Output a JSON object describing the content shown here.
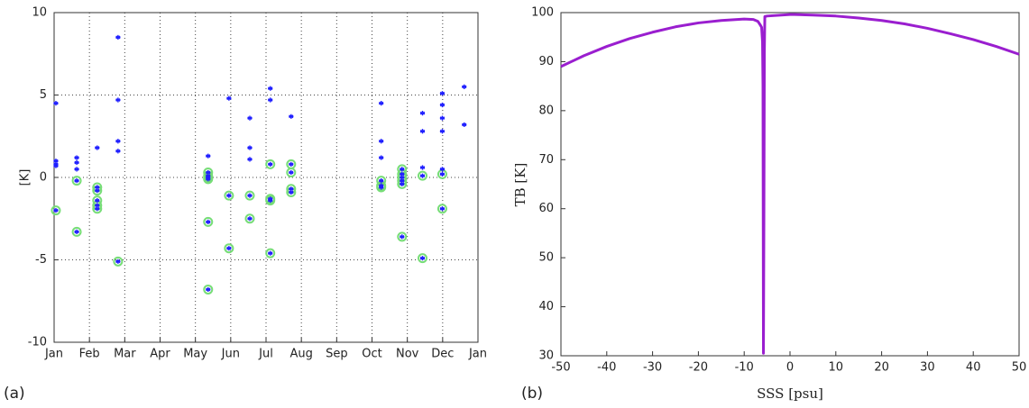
{
  "chart_data": [
    {
      "type": "scatter",
      "label": "(a)",
      "ylabel": "[K]",
      "xlim": [
        0,
        12
      ],
      "ylim": [
        -10,
        10
      ],
      "xticks": [
        {
          "value": 0,
          "label": "Jan"
        },
        {
          "value": 1,
          "label": "Feb"
        },
        {
          "value": 2,
          "label": "Mar"
        },
        {
          "value": 3,
          "label": "Apr"
        },
        {
          "value": 4,
          "label": "May"
        },
        {
          "value": 5,
          "label": "Jun"
        },
        {
          "value": 6,
          "label": "Jul"
        },
        {
          "value": 7,
          "label": "Aug"
        },
        {
          "value": 8,
          "label": "Sep"
        },
        {
          "value": 9,
          "label": "Oct"
        },
        {
          "value": 10,
          "label": "Nov"
        },
        {
          "value": 11,
          "label": "Dec"
        },
        {
          "value": 12,
          "label": "Jan"
        }
      ],
      "yticks": [
        -10,
        -5,
        0,
        5,
        10
      ],
      "grid": true,
      "series": [
        {
          "marker": "star",
          "color": "#2020ff",
          "x": [
            0.05,
            0.05,
            0.05,
            0.05,
            0.05,
            0.64,
            0.64,
            0.64,
            0.64,
            0.64,
            1.22,
            1.22,
            1.22,
            1.22,
            1.22,
            1.22,
            1.81,
            1.81,
            1.81,
            1.81,
            1.81,
            4.36,
            4.36,
            4.36,
            4.36,
            4.36,
            4.36,
            4.36,
            4.95,
            4.95,
            4.95,
            5.54,
            5.54,
            5.54,
            5.54,
            5.54,
            6.12,
            6.12,
            6.12,
            6.12,
            6.12,
            6.12,
            6.71,
            6.71,
            6.71,
            6.71,
            6.71,
            9.26,
            9.26,
            9.26,
            9.26,
            9.26,
            9.26,
            9.85,
            9.85,
            9.85,
            9.85,
            9.85,
            9.85,
            10.43,
            10.43,
            10.43,
            10.43,
            10.43,
            10.99,
            10.99,
            10.99,
            10.99,
            10.99,
            10.99,
            10.99,
            11.61,
            11.61
          ],
          "values": [
            4.5,
            1.0,
            0.8,
            0.7,
            -2.0,
            1.2,
            0.9,
            0.5,
            -0.2,
            -3.3,
            1.8,
            -0.6,
            -0.8,
            -1.4,
            -1.7,
            -1.9,
            8.5,
            4.7,
            2.2,
            1.6,
            -5.1,
            1.3,
            0.3,
            0.1,
            0.0,
            -0.1,
            -2.7,
            -6.8,
            4.8,
            -1.1,
            -4.3,
            3.6,
            1.8,
            1.1,
            -1.1,
            -2.5,
            5.4,
            4.7,
            0.8,
            -1.3,
            -1.4,
            -4.6,
            3.7,
            0.8,
            0.3,
            -0.7,
            -0.9,
            4.5,
            2.2,
            1.2,
            -0.2,
            -0.5,
            -0.6,
            0.5,
            0.2,
            0.0,
            -0.2,
            -0.4,
            -3.6,
            3.9,
            2.8,
            0.6,
            0.1,
            -4.9,
            5.1,
            4.4,
            3.6,
            2.8,
            0.5,
            0.2,
            -1.9,
            5.5,
            3.2
          ]
        },
        {
          "marker": "circle",
          "color": "#77dd77",
          "x": [
            0.05,
            0.64,
            0.64,
            1.22,
            1.22,
            1.22,
            1.22,
            1.22,
            1.81,
            4.36,
            4.36,
            4.36,
            4.36,
            4.36,
            4.36,
            4.95,
            4.95,
            5.54,
            5.54,
            6.12,
            6.12,
            6.12,
            6.12,
            6.71,
            6.71,
            6.71,
            6.71,
            9.26,
            9.26,
            9.26,
            9.85,
            9.85,
            9.85,
            9.85,
            9.85,
            9.85,
            10.43,
            10.43,
            10.99,
            10.99
          ],
          "values": [
            -2.0,
            -0.2,
            -3.3,
            -0.6,
            -0.8,
            -1.4,
            -1.7,
            -1.9,
            -5.1,
            0.3,
            0.1,
            0.0,
            -0.1,
            -2.7,
            -6.8,
            -1.1,
            -4.3,
            -1.1,
            -2.5,
            0.8,
            -1.3,
            -1.4,
            -4.6,
            0.8,
            0.3,
            -0.7,
            -0.9,
            -0.2,
            -0.5,
            -0.6,
            0.5,
            0.2,
            0.0,
            -0.2,
            -0.4,
            -3.6,
            0.1,
            -4.9,
            0.2,
            -1.9
          ]
        }
      ]
    },
    {
      "type": "line",
      "label": "(b)",
      "xlabel": "SSS [psu]",
      "ylabel": "TB [K]",
      "xlim": [
        -50,
        50
      ],
      "ylim": [
        30,
        100
      ],
      "xticks": [
        -50,
        -40,
        -30,
        -20,
        -10,
        0,
        10,
        20,
        30,
        40,
        50
      ],
      "yticks": [
        30,
        40,
        50,
        60,
        70,
        80,
        90,
        100
      ],
      "grid": false,
      "x": [
        -50,
        -45,
        -40,
        -35,
        -30,
        -25,
        -20,
        -15,
        -10,
        -8,
        -7,
        -6.5,
        -6.2,
        -6,
        -5.9,
        -5.8,
        -5.7,
        -5.6,
        -5.5,
        -5,
        0,
        1,
        5,
        10,
        15,
        20,
        25,
        30,
        35,
        40,
        45,
        50
      ],
      "series": [
        {
          "color": "#9a1ecf",
          "values": [
            89,
            91.2,
            93.1,
            94.7,
            96,
            97.1,
            97.9,
            98.4,
            98.7,
            98.6,
            98.2,
            97.5,
            97,
            94,
            85,
            30.5,
            57,
            92,
            99.2,
            99.3,
            99.6,
            99.6,
            99.5,
            99.3,
            98.9,
            98.4,
            97.7,
            96.8,
            95.7,
            94.5,
            93.1,
            91.5
          ]
        }
      ]
    }
  ]
}
